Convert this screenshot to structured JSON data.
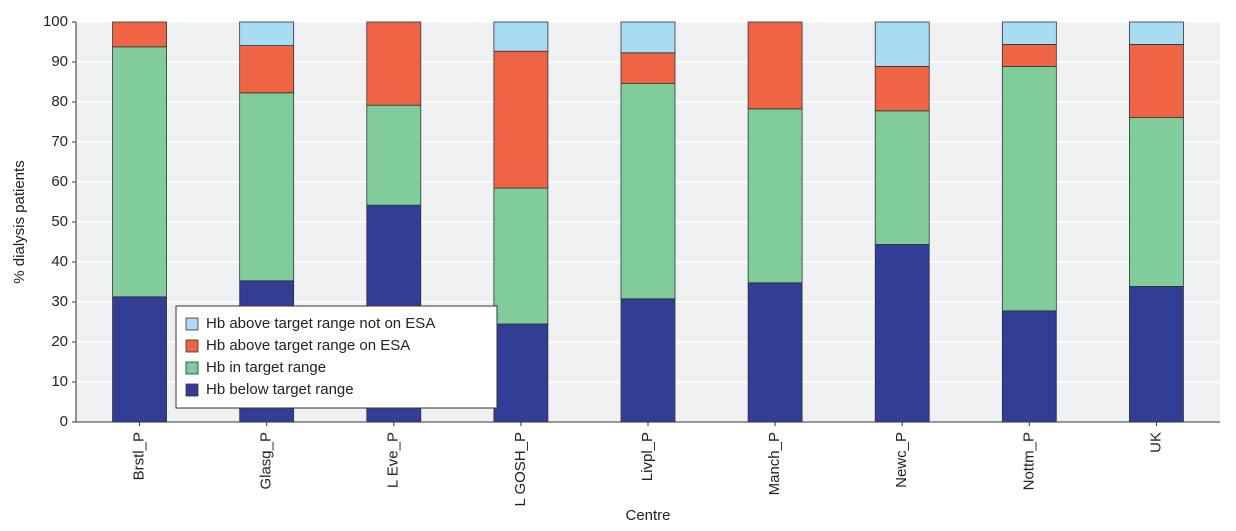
{
  "chart_data": {
    "type": "stacked_bar",
    "x_label": "Centre",
    "y_label": "% dialysis patients",
    "categories": [
      "Brstl_P",
      "Glasg_P",
      "L Eve_P",
      "L GOSH_P",
      "Livpl_P",
      "Manch_P",
      "Newc_P",
      "Nottm_P",
      "UK"
    ],
    "series": [
      {
        "name": "Hb below target range",
        "color": "#323e96",
        "values": [
          31.3,
          35.3,
          54.2,
          24.5,
          30.8,
          34.8,
          44.4,
          27.8,
          33.9
        ]
      },
      {
        "name": "Hb in target range",
        "color": "#80cc9a",
        "values": [
          62.5,
          47,
          25,
          34,
          53.8,
          43.5,
          33.4,
          61.1,
          42.2
        ]
      },
      {
        "name": "Hb above target range on ESA",
        "color": "#f06446",
        "values": [
          6.2,
          11.8,
          20.8,
          34.2,
          7.7,
          21.7,
          11.1,
          5.5,
          18.3
        ]
      },
      {
        "name": "Hb above target range not on ESA",
        "color": "#a8dcf5",
        "values": [
          0,
          5.9,
          0,
          7.3,
          7.7,
          0,
          11.1,
          5.6,
          5.6
        ]
      }
    ],
    "ylim": [
      0,
      100
    ],
    "yticks": [
      0,
      10,
      20,
      30,
      40,
      50,
      60,
      70,
      80,
      90,
      100
    ],
    "grid": true,
    "legend_position": "lower left"
  }
}
